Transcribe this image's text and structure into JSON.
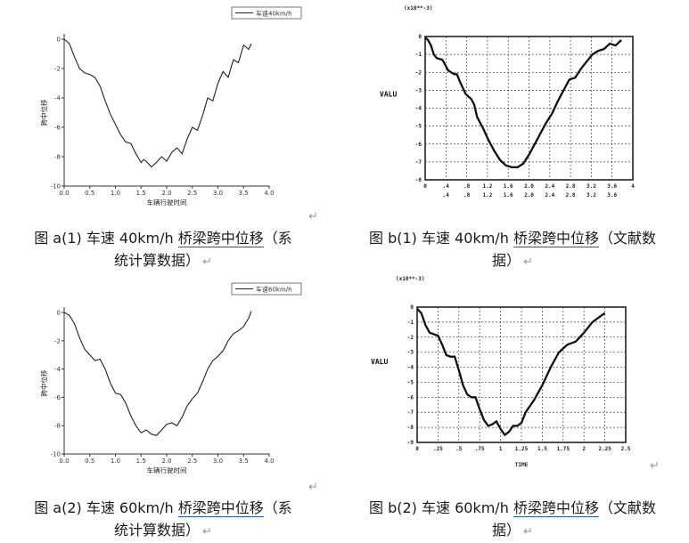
{
  "chart_data": [
    {
      "id": "a1",
      "type": "line",
      "style": "system",
      "title": "",
      "xlabel": "车辆行驶时间",
      "ylabel": "跨中位移",
      "xlim": [
        0,
        4
      ],
      "ylim": [
        -10,
        0
      ],
      "xticks": [
        "0.0",
        "0.5",
        "1.0",
        "1.5",
        "2.0",
        "2.5",
        "3.0",
        "3.5",
        "4.0"
      ],
      "yticks": [
        "0",
        "-2",
        "-4",
        "-6",
        "-8",
        "-10"
      ],
      "legend": "车速40km/h",
      "series": [
        {
          "name": "车速40km/h",
          "x": [
            0,
            0.1,
            0.2,
            0.3,
            0.4,
            0.5,
            0.6,
            0.7,
            0.8,
            0.9,
            1.0,
            1.1,
            1.2,
            1.3,
            1.4,
            1.5,
            1.55,
            1.6,
            1.7,
            1.8,
            1.9,
            2.0,
            2.1,
            2.2,
            2.3,
            2.4,
            2.5,
            2.6,
            2.7,
            2.8,
            2.9,
            3.0,
            3.1,
            3.2,
            3.3,
            3.4,
            3.5,
            3.6,
            3.65
          ],
          "y": [
            0,
            -0.3,
            -1.2,
            -2.0,
            -2.3,
            -2.4,
            -2.6,
            -3.2,
            -4.2,
            -5.1,
            -5.8,
            -6.5,
            -7.0,
            -7.1,
            -7.8,
            -8.4,
            -8.2,
            -8.3,
            -8.7,
            -8.4,
            -8.0,
            -8.3,
            -7.7,
            -7.4,
            -7.8,
            -6.8,
            -6.0,
            -6.2,
            -5.2,
            -4.0,
            -4.2,
            -3.0,
            -2.2,
            -2.6,
            -1.4,
            -1.6,
            -0.4,
            -0.7,
            -0.3
          ]
        }
      ]
    },
    {
      "id": "b1",
      "type": "line",
      "style": "literature",
      "title": "",
      "scale_note": "(x10**-3)",
      "ylabel": "VALU",
      "xlabel": "",
      "xlim": [
        0,
        3.6
      ],
      "ylim": [
        -8,
        0
      ],
      "xticks_top": [
        ".4",
        ".8",
        "1.2",
        "1.6",
        "2.0",
        "2.4",
        "2.8",
        "3.2",
        "3.6"
      ],
      "xticks_bottom": [
        "0",
        ".4",
        ".8",
        "1.2",
        "1.6",
        "2.0",
        "2.4",
        "2.8",
        "3.2",
        "3.6",
        "4"
      ],
      "yticks": [
        "0",
        "-1",
        "-2",
        "-3",
        "-4",
        "-5",
        "-6",
        "-7",
        "-8"
      ],
      "series": [
        {
          "name": "",
          "x": [
            0,
            0.05,
            0.1,
            0.15,
            0.2,
            0.3,
            0.4,
            0.5,
            0.55,
            0.6,
            0.7,
            0.8,
            0.85,
            0.9,
            1.0,
            1.1,
            1.2,
            1.3,
            1.4,
            1.5,
            1.6,
            1.7,
            1.8,
            1.9,
            2.0,
            2.1,
            2.2,
            2.3,
            2.4,
            2.5,
            2.6,
            2.7,
            2.8,
            2.9,
            3.0,
            3.1,
            3.2,
            3.3,
            3.4
          ],
          "y": [
            -0.05,
            -0.2,
            -0.5,
            -1.0,
            -1.2,
            -1.3,
            -1.9,
            -2.1,
            -2.1,
            -2.5,
            -3.2,
            -3.5,
            -3.8,
            -4.5,
            -5.1,
            -5.8,
            -6.4,
            -6.9,
            -7.2,
            -7.3,
            -7.3,
            -7.1,
            -6.6,
            -6.0,
            -5.4,
            -4.8,
            -4.3,
            -3.6,
            -3.0,
            -2.4,
            -2.3,
            -1.8,
            -1.4,
            -1.0,
            -0.8,
            -0.7,
            -0.4,
            -0.5,
            -0.2
          ]
        }
      ]
    },
    {
      "id": "a2",
      "type": "line",
      "style": "system",
      "title": "",
      "xlabel": "车辆行驶时间",
      "ylabel": "跨中位移",
      "xlim": [
        0,
        4
      ],
      "ylim": [
        -10,
        0
      ],
      "xticks": [
        "0.0",
        "0.5",
        "1.0",
        "1.5",
        "2.0",
        "2.5",
        "3.0",
        "3.5",
        "4.0"
      ],
      "yticks": [
        "0",
        "-2",
        "-4",
        "-6",
        "-8",
        "-10"
      ],
      "legend": "车速60km/h",
      "series": [
        {
          "name": "车速60km/h",
          "x": [
            0,
            0.1,
            0.2,
            0.3,
            0.4,
            0.5,
            0.6,
            0.7,
            0.8,
            0.9,
            1.0,
            1.1,
            1.2,
            1.3,
            1.4,
            1.5,
            1.6,
            1.7,
            1.8,
            1.9,
            2.0,
            2.1,
            2.2,
            2.3,
            2.4,
            2.5,
            2.6,
            2.7,
            2.8,
            2.9,
            3.0,
            3.1,
            3.2,
            3.3,
            3.4,
            3.5,
            3.6,
            3.65
          ],
          "y": [
            0,
            -0.2,
            -0.8,
            -1.8,
            -2.6,
            -3.0,
            -3.4,
            -3.3,
            -4.0,
            -5.0,
            -5.7,
            -5.8,
            -6.4,
            -7.3,
            -8.0,
            -8.5,
            -8.3,
            -8.6,
            -8.7,
            -8.3,
            -7.9,
            -7.8,
            -8.0,
            -7.4,
            -6.6,
            -6.1,
            -5.7,
            -4.9,
            -4.0,
            -3.4,
            -3.1,
            -2.7,
            -2.0,
            -1.5,
            -1.3,
            -1.0,
            -0.4,
            0.1
          ]
        }
      ]
    },
    {
      "id": "b2",
      "type": "line",
      "style": "literature",
      "title": "",
      "scale_note": "(x10**-3)",
      "ylabel": "VALU",
      "xlabel": "TIME",
      "xlim": [
        0,
        2.5
      ],
      "ylim": [
        -9,
        0
      ],
      "xticks_bottom": [
        "0",
        ".25",
        ".5",
        ".75",
        "1",
        "1.25",
        "1.5",
        "1.75",
        "2",
        "2.25",
        "2.5"
      ],
      "yticks": [
        "0",
        "-1",
        "-2",
        "-3",
        "-4",
        "-5",
        "-6",
        "-7",
        "-8",
        "-9"
      ],
      "series": [
        {
          "name": "",
          "x": [
            0,
            0.05,
            0.1,
            0.15,
            0.2,
            0.25,
            0.3,
            0.35,
            0.4,
            0.45,
            0.5,
            0.55,
            0.6,
            0.65,
            0.7,
            0.75,
            0.8,
            0.85,
            0.9,
            0.95,
            1.0,
            1.05,
            1.1,
            1.15,
            1.2,
            1.25,
            1.3,
            1.4,
            1.5,
            1.6,
            1.7,
            1.8,
            1.9,
            2.0,
            2.1,
            2.15,
            2.2,
            2.25
          ],
          "y": [
            -0.1,
            -0.4,
            -1.2,
            -1.7,
            -1.8,
            -1.9,
            -2.5,
            -3.2,
            -3.3,
            -3.3,
            -4.2,
            -5.2,
            -5.8,
            -6.0,
            -6.0,
            -6.8,
            -7.5,
            -7.9,
            -7.8,
            -7.6,
            -8.1,
            -8.5,
            -8.3,
            -7.9,
            -7.9,
            -7.7,
            -7.0,
            -6.2,
            -5.2,
            -4.0,
            -3.0,
            -2.5,
            -2.3,
            -1.7,
            -1.0,
            -0.8,
            -0.6,
            -0.4
          ]
        }
      ]
    }
  ],
  "captions": {
    "a1_prefix": "图 a(1) 车速 40km/h ",
    "a1_link": "桥梁跨中位移",
    "a1_line1_tail": "（系",
    "a1_line2": "统计算数据）",
    "b1_prefix": "图 b(1) 车速 40km/h ",
    "b1_link": "桥梁跨中位移",
    "b1_line1_tail": "（文献数",
    "b1_line2": "据）",
    "a2_prefix": "图 a(2) 车速 60km/h ",
    "a2_link": "桥梁跨中位移",
    "a2_line1_tail": "（系",
    "a2_line2": "统计算数据）",
    "b2_prefix": "图 b(2) 车速 60km/h ",
    "b2_link": "桥梁跨中位移",
    "b2_line1_tail": "（文献数",
    "b2_line2": "据）",
    "return_mark": "↵"
  }
}
